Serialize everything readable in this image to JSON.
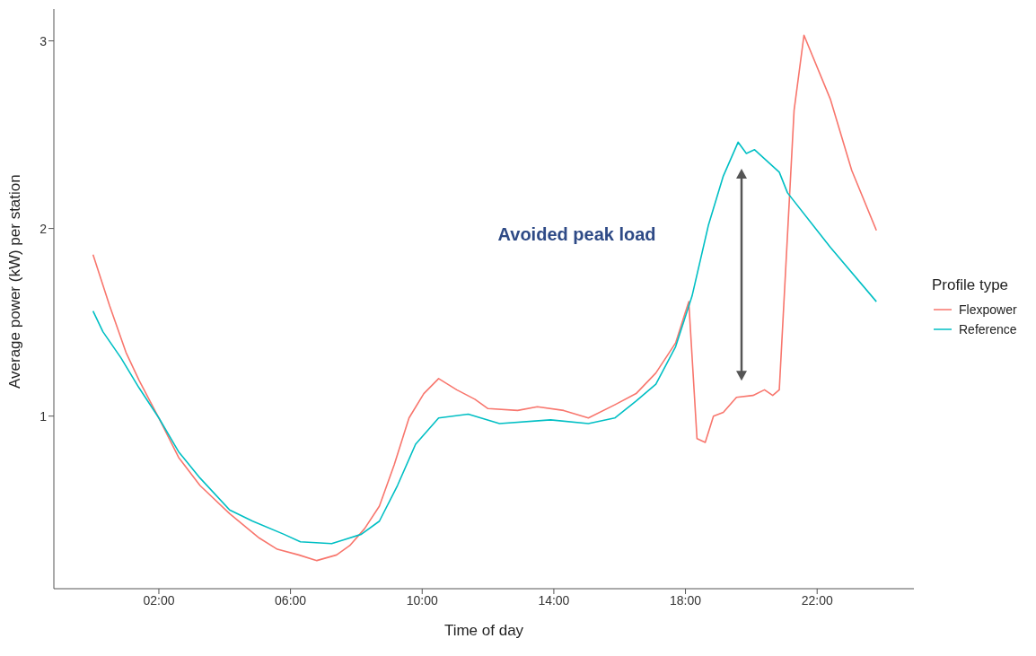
{
  "chart_data": {
    "type": "line",
    "xlabel": "Time of day",
    "ylabel": "Average power (kW) per station",
    "legend_title": "Profile type",
    "legend": "right",
    "grid": false,
    "marker": "none",
    "line_style": "solid",
    "xlim": [
      -1.19,
      24.94
    ],
    "ylim": [
      0.08,
      3.17
    ],
    "xticks": [
      {
        "value": 2,
        "label": "02:00"
      },
      {
        "value": 6,
        "label": "06:00"
      },
      {
        "value": 10,
        "label": "10:00"
      },
      {
        "value": 14,
        "label": "14:00"
      },
      {
        "value": 18,
        "label": "18:00"
      },
      {
        "value": 22,
        "label": "22:00"
      }
    ],
    "yticks": [
      1,
      2,
      3
    ],
    "annotations": [
      "Avoided peak load"
    ],
    "series": [
      {
        "name": "Flexpower",
        "color": "#f8766d",
        "x": [
          0,
          0.5,
          1,
          1.4,
          2,
          2.6,
          3.25,
          4.15,
          5.05,
          5.6,
          6.25,
          6.8,
          7.4,
          7.8,
          8.25,
          8.7,
          9.15,
          9.6,
          10.05,
          10.5,
          11.05,
          11.6,
          12,
          12.9,
          13.5,
          14.3,
          15.05,
          15.85,
          16.5,
          17.1,
          17.7,
          18.1,
          18.35,
          18.6,
          18.85,
          19.15,
          19.55,
          20.05,
          20.4,
          20.65,
          20.85,
          21.3,
          21.6,
          22.4,
          23.05,
          23.8
        ],
        "values": [
          1.86,
          1.59,
          1.34,
          1.19,
          0.99,
          0.78,
          0.63,
          0.48,
          0.35,
          0.29,
          0.26,
          0.23,
          0.26,
          0.31,
          0.4,
          0.52,
          0.74,
          0.99,
          1.12,
          1.2,
          1.14,
          1.09,
          1.04,
          1.03,
          1.05,
          1.03,
          0.99,
          1.06,
          1.12,
          1.23,
          1.39,
          1.61,
          0.88,
          0.86,
          1,
          1.02,
          1.1,
          1.11,
          1.14,
          1.11,
          1.14,
          2.63,
          3.03,
          2.69,
          2.31,
          1.99
        ]
      },
      {
        "name": "Reference",
        "color": "#00bfc4",
        "x": [
          0,
          0.3,
          0.85,
          1.4,
          2,
          2.6,
          3.25,
          4.15,
          4.85,
          5.8,
          6.3,
          7.25,
          7.6,
          8.15,
          8.7,
          9.25,
          9.8,
          10.5,
          11.4,
          12.35,
          13.9,
          15.05,
          15.85,
          16.5,
          17.1,
          17.7,
          18.2,
          18.7,
          19.15,
          19.6,
          19.85,
          20.1,
          20.85,
          21.1,
          22.4,
          23.8
        ],
        "values": [
          1.56,
          1.45,
          1.31,
          1.15,
          0.99,
          0.81,
          0.67,
          0.5,
          0.44,
          0.37,
          0.33,
          0.32,
          0.34,
          0.37,
          0.44,
          0.63,
          0.85,
          0.99,
          1.01,
          0.96,
          0.98,
          0.96,
          0.99,
          1.08,
          1.17,
          1.37,
          1.64,
          2.02,
          2.28,
          2.46,
          2.4,
          2.42,
          2.3,
          2.19,
          1.9,
          1.61
        ]
      }
    ]
  }
}
